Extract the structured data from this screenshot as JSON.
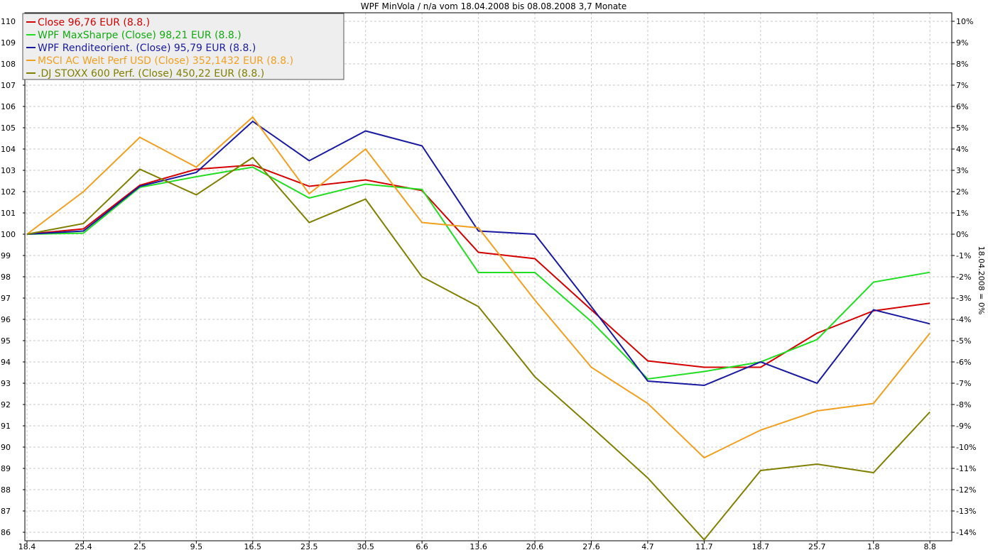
{
  "chart_data": {
    "type": "line",
    "title": "WPF MinVola / n/a vom 18.04.2008 bis 08.08.2008 3,7 Monate",
    "ylabel_right": "18.04.2008 = 0%",
    "categories": [
      "18.4",
      "25.4",
      "2.5",
      "9.5",
      "16.5",
      "23.5",
      "30.5",
      "6.6",
      "13.6",
      "20.6",
      "27.6",
      "4.7",
      "11.7",
      "18.7",
      "25.7",
      "1.8",
      "8.8"
    ],
    "ylim": [
      85.6,
      110.4
    ],
    "yticks_left": [
      "86",
      "87",
      "88",
      "89",
      "90",
      "91",
      "92",
      "93",
      "94",
      "95",
      "96",
      "97",
      "98",
      "99",
      "100",
      "101",
      "102",
      "103",
      "104",
      "105",
      "106",
      "107",
      "108",
      "109",
      "110"
    ],
    "yticks_right": [
      "-14%",
      "-13%",
      "-12%",
      "-11%",
      "-10%",
      "-9%",
      "-8%",
      "-7%",
      "-6%",
      "-5%",
      "-4%",
      "-3%",
      "-2%",
      "-1%",
      "0%",
      "1%",
      "2%",
      "3%",
      "4%",
      "5%",
      "6%",
      "7%",
      "8%",
      "9%",
      "10%"
    ],
    "grid": true,
    "legend_position": "top-left",
    "series": [
      {
        "name": "Close 96,76 EUR (8.8.)",
        "color": "#d40000",
        "values": [
          100,
          100.25,
          102.3,
          103.05,
          103.25,
          102.25,
          102.55,
          102.05,
          99.15,
          98.85,
          96.45,
          94.05,
          93.75,
          93.75,
          95.35,
          96.4,
          96.76
        ]
      },
      {
        "name": "WPF MaxSharpe (Close) 98,21 EUR (8.8.)",
        "color": "#22dd22",
        "values": [
          100,
          100.05,
          102.2,
          102.7,
          103.15,
          101.7,
          102.35,
          102.1,
          98.2,
          98.2,
          95.9,
          93.2,
          93.55,
          94.0,
          95.05,
          97.75,
          98.21
        ]
      },
      {
        "name": "WPF Renditeorient. (Close) 95,79 EUR (8.8.)",
        "color": "#1a1aa0",
        "values": [
          100,
          100.15,
          102.25,
          102.9,
          105.3,
          103.45,
          104.85,
          104.15,
          100.15,
          100.0,
          96.6,
          93.1,
          92.9,
          94.0,
          93.0,
          96.45,
          95.79
        ]
      },
      {
        "name": "MSCI AC Welt Perf USD (Close) 352,1432 EUR (8.8.)",
        "color": "#f0a020",
        "values": [
          100,
          102.0,
          104.55,
          103.15,
          105.5,
          101.9,
          104.0,
          100.55,
          100.3,
          96.9,
          93.75,
          92.05,
          89.5,
          90.8,
          91.7,
          92.05,
          95.35
        ]
      },
      {
        "name": ".DJ STOXX 600 Perf. (Close) 450,22 EUR (8.8.)",
        "color": "#808000",
        "values": [
          100,
          100.5,
          103.05,
          101.85,
          103.6,
          100.55,
          101.65,
          98.0,
          96.6,
          93.3,
          90.95,
          88.55,
          85.65,
          88.9,
          89.2,
          88.8,
          91.65
        ]
      }
    ]
  }
}
